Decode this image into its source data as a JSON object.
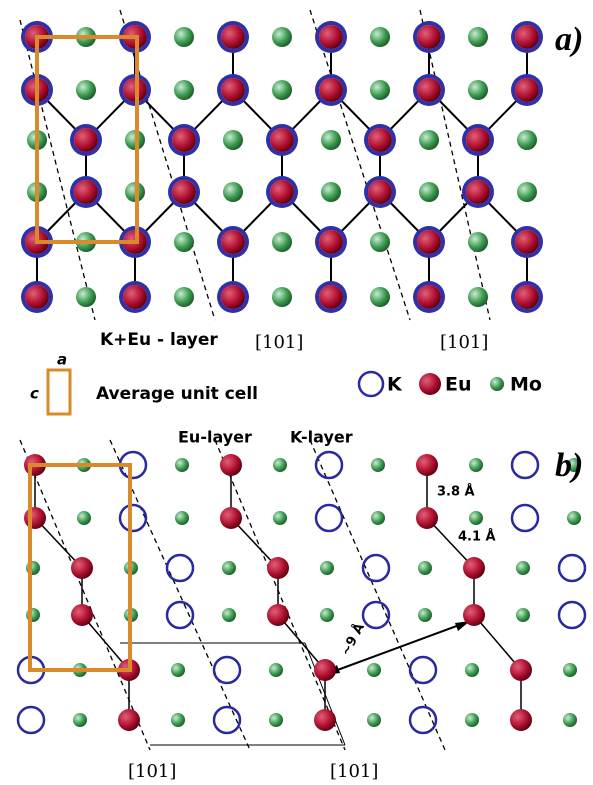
{
  "panel_a": {
    "label": "a)",
    "layer_label": "K+Eu - layer",
    "directions": [
      "[101]",
      "[101]"
    ]
  },
  "legend": {
    "cell_a": "a",
    "cell_c": "c",
    "cell_label": "Average unit cell",
    "items": [
      "K",
      "Eu",
      "Mo"
    ]
  },
  "panel_b": {
    "label": "b)",
    "eu_layer": "Eu-layer",
    "k_layer": "K-layer",
    "distances": [
      "3.8 Å",
      "4.1 Å",
      "~9 Å"
    ],
    "directions": [
      "[101]",
      "[101]"
    ]
  }
}
